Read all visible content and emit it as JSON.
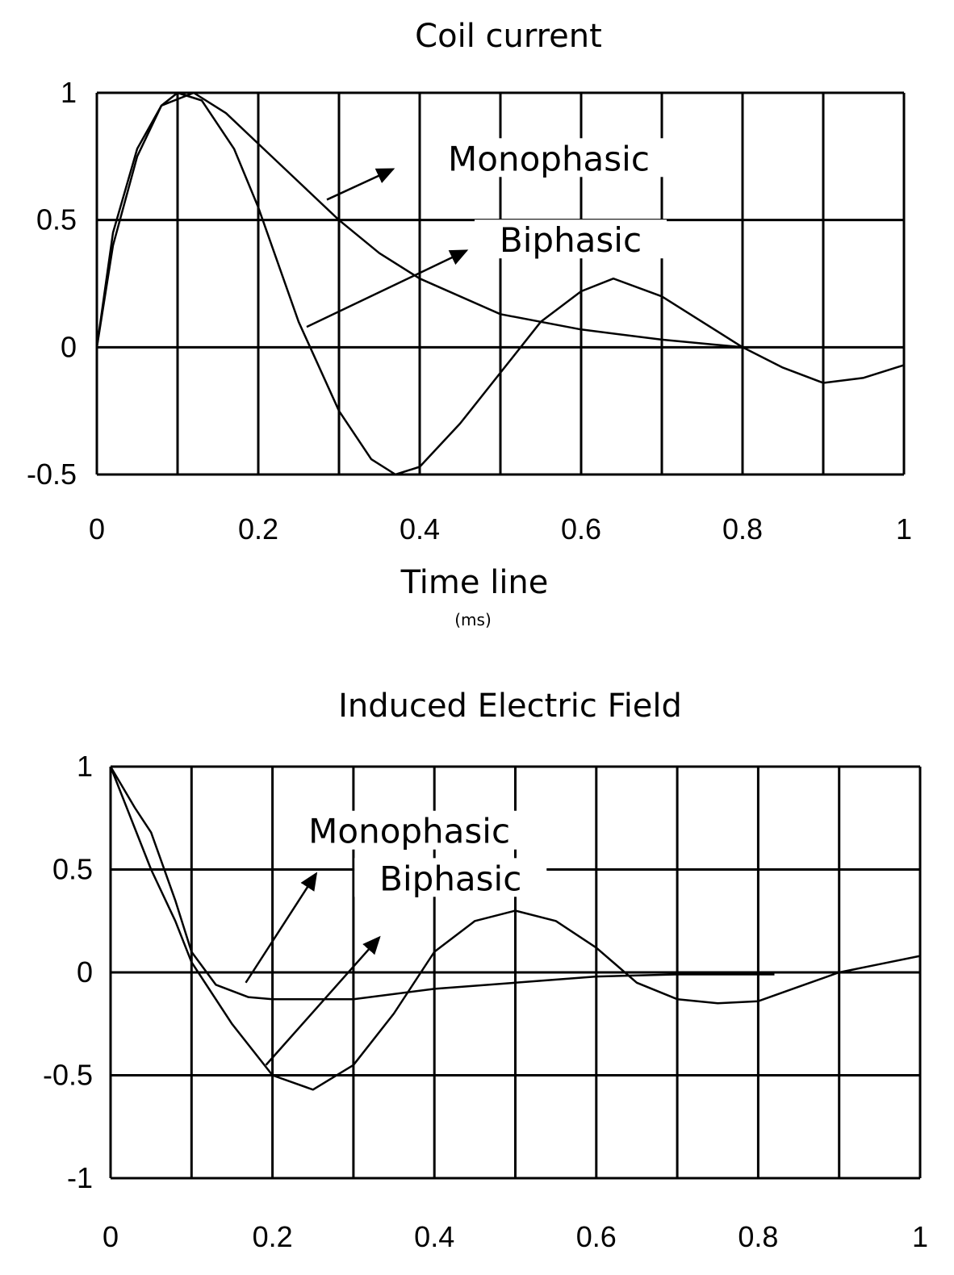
{
  "chart_data": [
    {
      "type": "line",
      "title": "Coil current",
      "xlabel": "Time line",
      "xlabel_unit": "(ms)",
      "ylabel": "",
      "xlim": [
        0,
        1
      ],
      "ylim": [
        -0.5,
        1
      ],
      "grid": true,
      "x_ticks": [
        0,
        0.2,
        0.4,
        0.6,
        0.8,
        1
      ],
      "x_tick_labels": [
        "0",
        "0.2",
        "0.4",
        "0.6",
        "0.8",
        "1"
      ],
      "y_ticks": [
        -0.5,
        0,
        0.5,
        1
      ],
      "y_tick_labels": [
        "-0.5",
        "0",
        "0.5",
        "1"
      ],
      "series": [
        {
          "name": "Monophasic",
          "x": [
            0,
            0.02,
            0.05,
            0.08,
            0.12,
            0.16,
            0.2,
            0.25,
            0.3,
            0.35,
            0.4,
            0.5,
            0.6,
            0.7,
            0.8
          ],
          "y": [
            0,
            0.45,
            0.78,
            0.95,
            1,
            0.92,
            0.8,
            0.65,
            0.5,
            0.37,
            0.27,
            0.13,
            0.07,
            0.03,
            0.0
          ]
        },
        {
          "name": "Biphasic",
          "x": [
            0,
            0.02,
            0.05,
            0.08,
            0.1,
            0.13,
            0.17,
            0.2,
            0.25,
            0.3,
            0.34,
            0.37,
            0.4,
            0.45,
            0.5,
            0.55,
            0.6,
            0.64,
            0.7,
            0.75,
            0.8,
            0.85,
            0.9,
            0.95,
            1
          ],
          "y": [
            0,
            0.4,
            0.75,
            0.95,
            1,
            0.97,
            0.78,
            0.55,
            0.1,
            -0.25,
            -0.44,
            -0.5,
            -0.47,
            -0.3,
            -0.1,
            0.1,
            0.22,
            0.27,
            0.2,
            0.1,
            0.0,
            -0.08,
            -0.14,
            -0.12,
            -0.07
          ]
        }
      ],
      "annotations": [
        {
          "text": "Monophasic",
          "x": 0.56,
          "y": 0.72,
          "arrow_from": [
            0.285,
            0.58
          ],
          "arrow_to": [
            0.367,
            0.7
          ]
        },
        {
          "text": "Biphasic",
          "x": 0.587,
          "y": 0.4,
          "arrow_from": [
            0.26,
            0.08
          ],
          "arrow_to": [
            0.458,
            0.38
          ]
        }
      ]
    },
    {
      "type": "line",
      "title": "Induced Electric Field",
      "xlabel": "",
      "ylabel": "",
      "xlim": [
        0,
        1
      ],
      "ylim": [
        -1,
        1
      ],
      "grid": true,
      "x_ticks": [
        0,
        0.2,
        0.4,
        0.6,
        0.8,
        1
      ],
      "x_tick_labels": [
        "0",
        "0.2",
        "0.4",
        "0.6",
        "0.8",
        "1"
      ],
      "y_ticks": [
        -1,
        -0.5,
        0,
        0.5,
        1
      ],
      "y_tick_labels": [
        "-1",
        "-0.5",
        "0",
        "0.5",
        "1"
      ],
      "series": [
        {
          "name": "Monophasic",
          "x": [
            0,
            0.03,
            0.05,
            0.08,
            0.1,
            0.13,
            0.17,
            0.2,
            0.3,
            0.4,
            0.5,
            0.6,
            0.7,
            0.82
          ],
          "y": [
            1,
            0.8,
            0.68,
            0.35,
            0.1,
            -0.06,
            -0.12,
            -0.13,
            -0.13,
            -0.08,
            -0.05,
            -0.02,
            -0.01,
            -0.01
          ]
        },
        {
          "name": "Biphasic",
          "x": [
            0,
            0.03,
            0.05,
            0.08,
            0.1,
            0.15,
            0.2,
            0.25,
            0.3,
            0.35,
            0.4,
            0.45,
            0.5,
            0.55,
            0.6,
            0.65,
            0.7,
            0.75,
            0.8,
            0.85,
            0.9,
            0.95,
            1
          ],
          "y": [
            1,
            0.7,
            0.5,
            0.25,
            0.05,
            -0.25,
            -0.5,
            -0.57,
            -0.45,
            -0.2,
            0.1,
            0.25,
            0.3,
            0.25,
            0.12,
            -0.05,
            -0.13,
            -0.15,
            -0.14,
            -0.07,
            0.0,
            0.04,
            0.08
          ]
        }
      ],
      "annotations": [
        {
          "text": "Monophasic",
          "x": 0.369,
          "y": 0.66,
          "arrow_from": [
            0.167,
            -0.05
          ],
          "arrow_to": [
            0.254,
            0.48
          ]
        },
        {
          "text": "Biphasic",
          "x": 0.42,
          "y": 0.43,
          "arrow_from": [
            0.192,
            -0.45
          ],
          "arrow_to": [
            0.332,
            0.17
          ]
        }
      ]
    }
  ]
}
